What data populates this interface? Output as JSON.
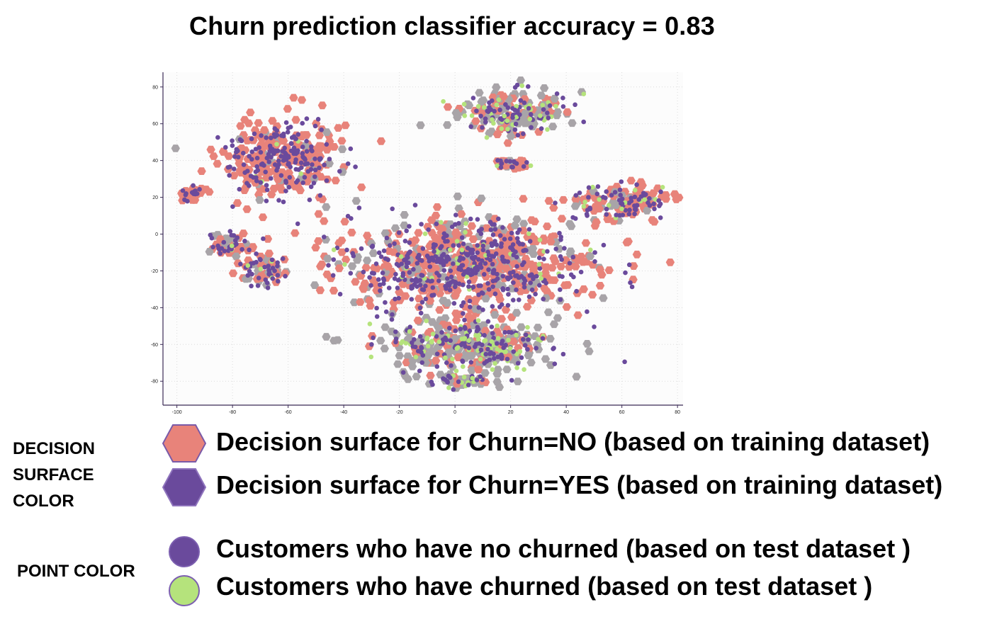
{
  "title": "Churn prediction classifier accuracy = 0.83",
  "legend": {
    "surface_heading": "DECISION SURFACE COLOR",
    "point_heading": "POINT COLOR",
    "items": [
      {
        "label": "Decision surface for Churn=NO (based on training dataset)",
        "color": "#e8837a",
        "shape": "hexagon"
      },
      {
        "label": "Decision surface for Churn=YES (based on training dataset)",
        "color": "#6a4a9c",
        "shape": "hexagon"
      },
      {
        "label": "Customers who have no churned (based on test dataset )",
        "color": "#6a4a9c",
        "shape": "circle"
      },
      {
        "label": "Customers who have churned (based on test dataset )",
        "color": "#b5e37c",
        "shape": "circle"
      }
    ]
  },
  "chart_data": {
    "type": "scatter",
    "title": "Churn prediction classifier accuracy = 0.83",
    "xlabel": "",
    "ylabel": "",
    "xlim": [
      -105,
      82
    ],
    "ylim": [
      -93,
      88
    ],
    "xticks": [
      -100,
      -80,
      -60,
      -40,
      -20,
      0,
      20,
      40,
      60,
      80
    ],
    "yticks": [
      80,
      60,
      40,
      20,
      0,
      -20,
      -40,
      -60,
      -80
    ],
    "grid": true,
    "colors": {
      "surface_no": "#e8837a",
      "surface_yes": "#6a4a9c",
      "surface_gray": "#a8a4a8",
      "point_no_churn": "#6a4a9c",
      "point_churn": "#b5e37c"
    },
    "clusters": [
      {
        "center": [
          -62,
          42
        ],
        "spread": [
          20,
          20
        ],
        "share_no_surface": 0.88,
        "share_churn_points": 0.04
      },
      {
        "center": [
          -95,
          22
        ],
        "spread": [
          4,
          4
        ],
        "share_no_surface": 1.0,
        "share_churn_points": 0.0
      },
      {
        "center": [
          -80,
          -6
        ],
        "spread": [
          8,
          6
        ],
        "share_no_surface": 0.7,
        "share_churn_points": 0.08
      },
      {
        "center": [
          -68,
          -20
        ],
        "spread": [
          8,
          9
        ],
        "share_no_surface": 0.7,
        "share_churn_points": 0.05
      },
      {
        "center": [
          20,
          65
        ],
        "spread": [
          18,
          12
        ],
        "share_no_surface": 0.45,
        "share_churn_points": 0.35
      },
      {
        "center": [
          21,
          38
        ],
        "spread": [
          6,
          3
        ],
        "share_no_surface": 0.8,
        "share_churn_points": 0.1
      },
      {
        "center": [
          61,
          18
        ],
        "spread": [
          18,
          9
        ],
        "share_no_surface": 0.78,
        "share_churn_points": 0.18
      },
      {
        "center": [
          5,
          -17
        ],
        "spread": [
          42,
          24
        ],
        "share_no_surface": 0.72,
        "share_churn_points": 0.08
      },
      {
        "center": [
          5,
          -60
        ],
        "spread": [
          30,
          14
        ],
        "share_no_surface": 0.28,
        "share_churn_points": 0.38
      },
      {
        "center": [
          2,
          -80
        ],
        "spread": [
          10,
          4
        ],
        "share_no_surface": 0.3,
        "share_churn_points": 0.4
      }
    ]
  }
}
